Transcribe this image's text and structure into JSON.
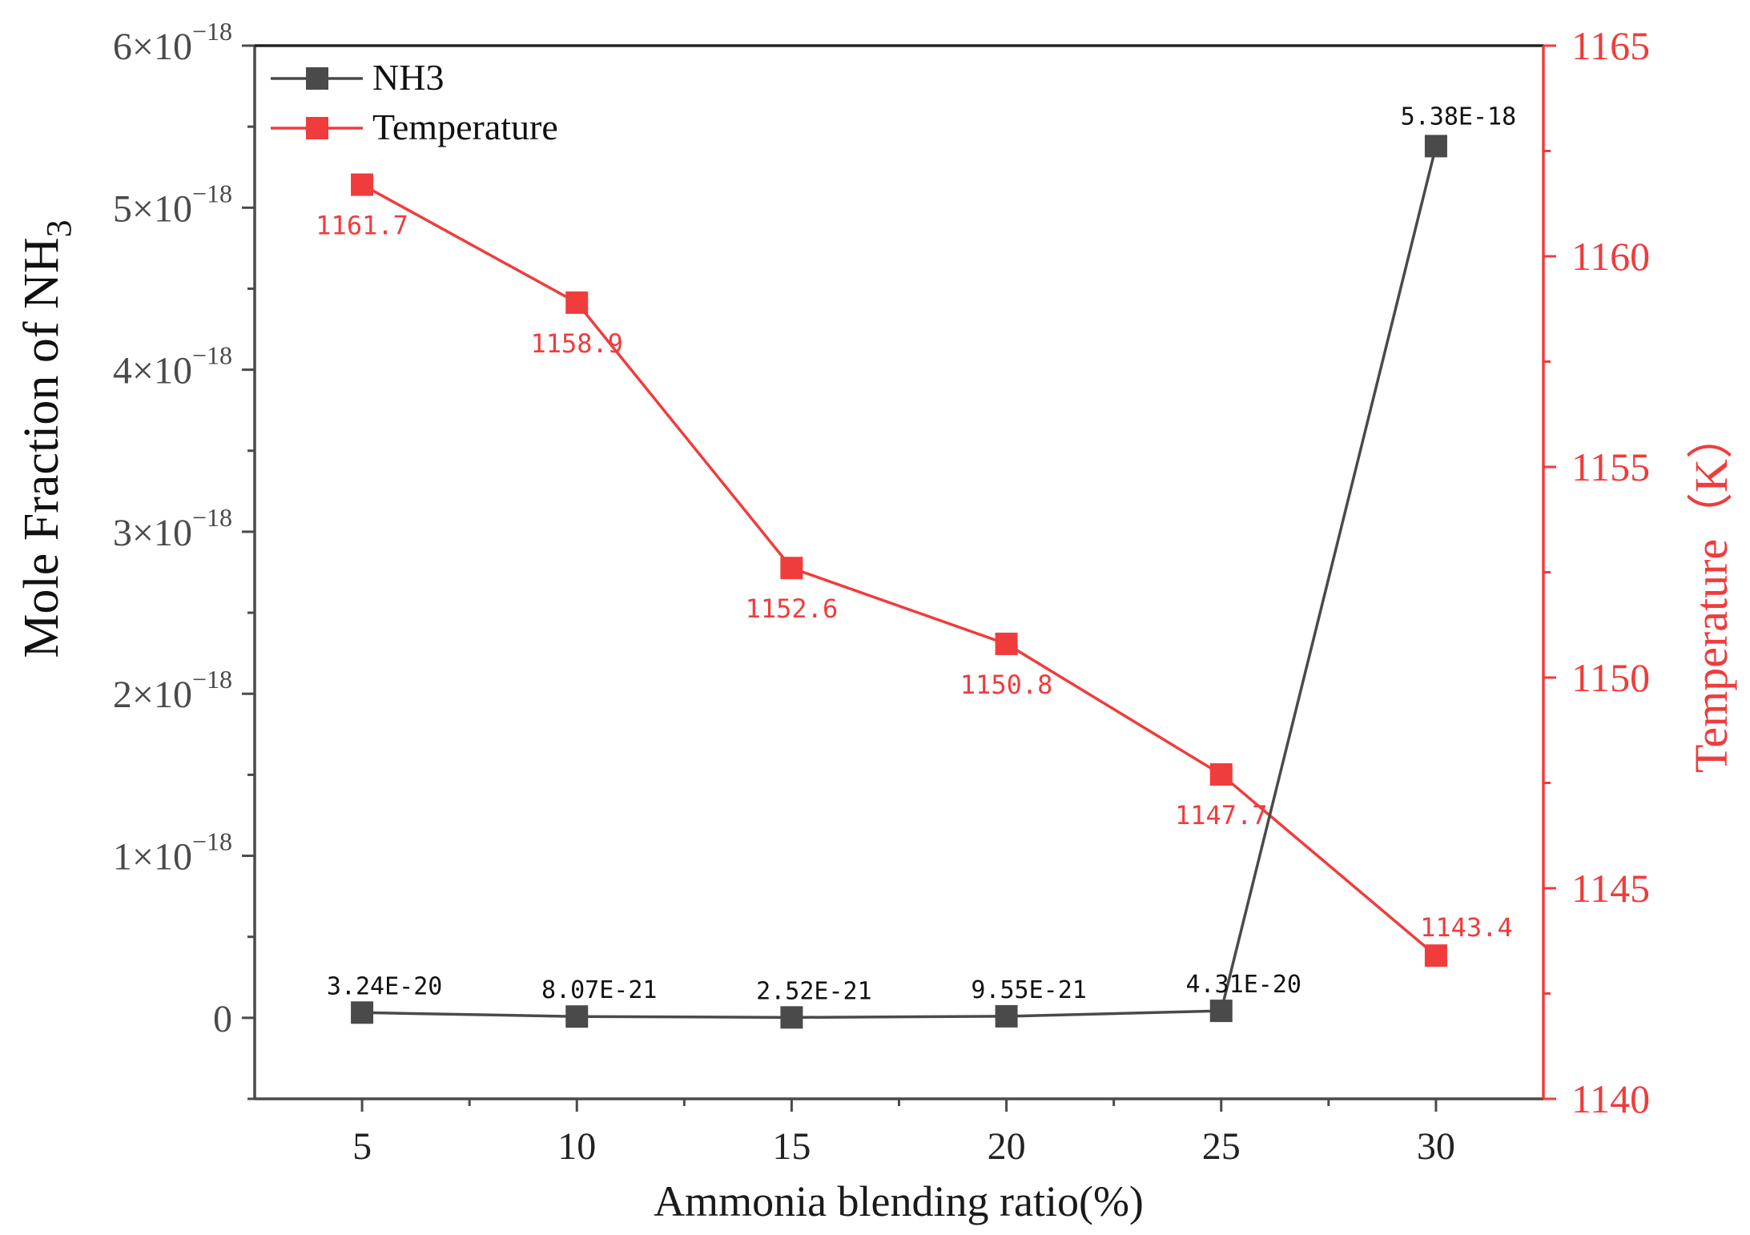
{
  "chart_data": {
    "type": "line",
    "dual_axis": true,
    "x": [
      5,
      10,
      15,
      20,
      25,
      30
    ],
    "xlabel": "Ammonia blending ratio(%)",
    "xlim": [
      2.5,
      32.5
    ],
    "xticks": [
      5,
      10,
      15,
      20,
      25,
      30
    ],
    "ylabel_left_prefix": "Mole Fraction of NH",
    "ylabel_left_subscript": "3",
    "ylim_left": [
      -5e-19,
      6e-18
    ],
    "yticks_left": [
      {
        "value": 0,
        "mantissa": "0",
        "exponent": ""
      },
      {
        "value": 1e-18,
        "mantissa": "1×10",
        "exponent": "−18"
      },
      {
        "value": 2e-18,
        "mantissa": "2×10",
        "exponent": "−18"
      },
      {
        "value": 3e-18,
        "mantissa": "3×10",
        "exponent": "−18"
      },
      {
        "value": 4e-18,
        "mantissa": "4×10",
        "exponent": "−18"
      },
      {
        "value": 5e-18,
        "mantissa": "5×10",
        "exponent": "−18"
      },
      {
        "value": 6e-18,
        "mantissa": "6×10",
        "exponent": "−18"
      }
    ],
    "ylabel_right": "Temperature（K）",
    "ylim_right": [
      1140,
      1165
    ],
    "yticks_right": [
      1140,
      1145,
      1150,
      1155,
      1160,
      1165
    ],
    "legend_position": "top-left",
    "series": [
      {
        "name": "NH3",
        "axis": "left",
        "color": "#4a4a4a",
        "marker": "square",
        "values": [
          3.24e-20,
          8.07e-21,
          2.52e-21,
          9.55e-21,
          4.31e-20,
          5.38e-18
        ],
        "labels": [
          "3.24E-20",
          "8.07E-21",
          "2.52E-21",
          "9.55E-21",
          "4.31E-20",
          "5.38E-18"
        ]
      },
      {
        "name": "Temperature",
        "axis": "right",
        "color": "#f03c3c",
        "marker": "square",
        "values": [
          1161.7,
          1158.9,
          1152.6,
          1150.8,
          1147.7,
          1143.4
        ],
        "labels": [
          "1161.7",
          "1158.9",
          "1152.6",
          "1150.8",
          "1147.7",
          "1143.4"
        ]
      }
    ]
  }
}
